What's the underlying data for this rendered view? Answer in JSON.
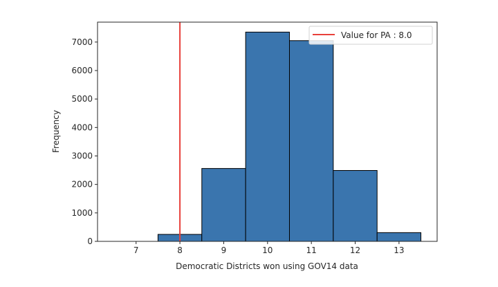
{
  "chart_data": {
    "type": "bar",
    "title": "",
    "xlabel": "Democratic Districts won using GOV14 data",
    "ylabel": "Frequency",
    "bins": [
      {
        "center": 8,
        "value": 245
      },
      {
        "center": 9,
        "value": 2560
      },
      {
        "center": 10,
        "value": 7350
      },
      {
        "center": 11,
        "value": 7050
      },
      {
        "center": 12,
        "value": 2490
      },
      {
        "center": 13,
        "value": 307
      }
    ],
    "bin_width": 1,
    "xlim": [
      6.12,
      13.87
    ],
    "ylim": [
      0,
      7700
    ],
    "xticks": [
      "7",
      "8",
      "9",
      "10",
      "11",
      "12",
      "13"
    ],
    "yticks": [
      "0",
      "1000",
      "2000",
      "3000",
      "4000",
      "5000",
      "6000",
      "7000"
    ],
    "bar_color": "#3a75ae",
    "bar_edge_color": "#000000",
    "reference_line": {
      "x": 8.0,
      "color": "#e8403a",
      "label": "Value for PA : 8.0"
    },
    "legend_position": "top-right",
    "grid": false
  }
}
